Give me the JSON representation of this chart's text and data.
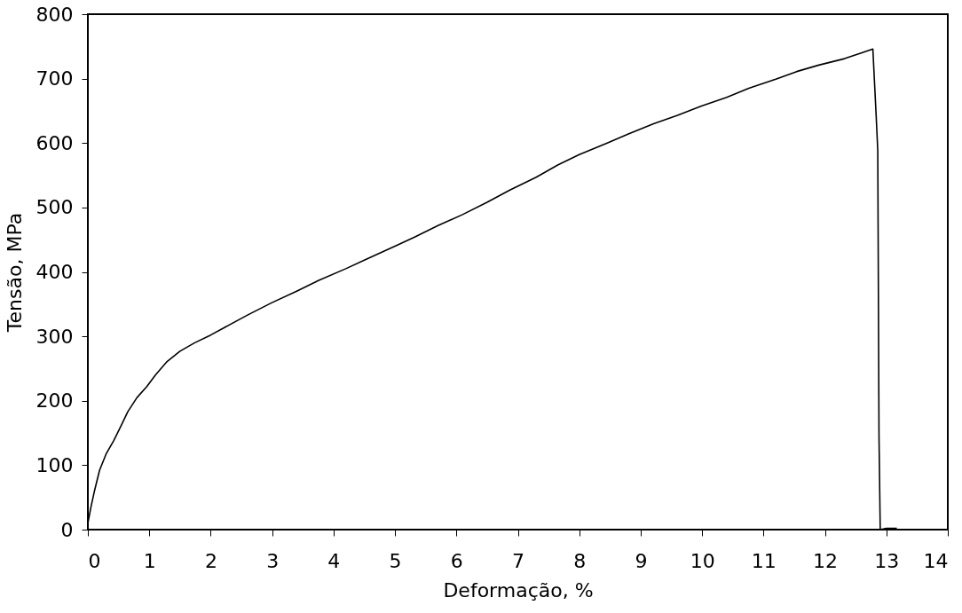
{
  "chart_data": {
    "type": "line",
    "xlabel": "Deformação, %",
    "ylabel": "Tensão, MPa",
    "x": [
      0,
      0.05,
      0.11,
      0.19,
      0.3,
      0.42,
      0.55,
      0.65,
      0.8,
      0.96,
      1.1,
      1.28,
      1.5,
      1.74,
      2.0,
      2.21,
      2.6,
      2.99,
      3.4,
      3.76,
      4.2,
      4.54,
      5.0,
      5.32,
      5.7,
      6.1,
      6.5,
      6.87,
      7.3,
      7.65,
      8.0,
      8.43,
      8.8,
      9.21,
      9.6,
      9.98,
      10.4,
      10.76,
      11.2,
      11.54,
      11.9,
      12.32,
      12.6,
      12.78,
      12.83,
      12.86,
      12.88,
      12.9,
      13.0,
      13.17
    ],
    "series": [
      {
        "color": "#000000",
        "values": [
          10,
          35,
          61,
          92,
          118,
          138,
          163,
          183,
          205,
          222,
          240,
          260,
          277,
          290,
          302,
          313,
          333,
          352,
          370,
          387,
          405,
          420,
          440,
          454,
          472,
          489,
          508,
          527,
          547,
          566,
          582,
          599,
          614,
          630,
          643,
          657,
          671,
          685,
          699,
          711,
          721,
          731,
          740,
          746,
          650,
          588,
          145,
          0,
          2,
          2
        ]
      }
    ],
    "xlim": [
      0,
      14
    ],
    "ylim": [
      0,
      800
    ],
    "xticks": [
      0,
      1,
      2,
      3,
      4,
      5,
      6,
      7,
      8,
      9,
      10,
      11,
      12,
      13,
      14
    ],
    "yticks": [
      0,
      100,
      200,
      300,
      400,
      500,
      600,
      700,
      800
    ],
    "grid": false,
    "marker": "none",
    "line_style": "solid"
  }
}
